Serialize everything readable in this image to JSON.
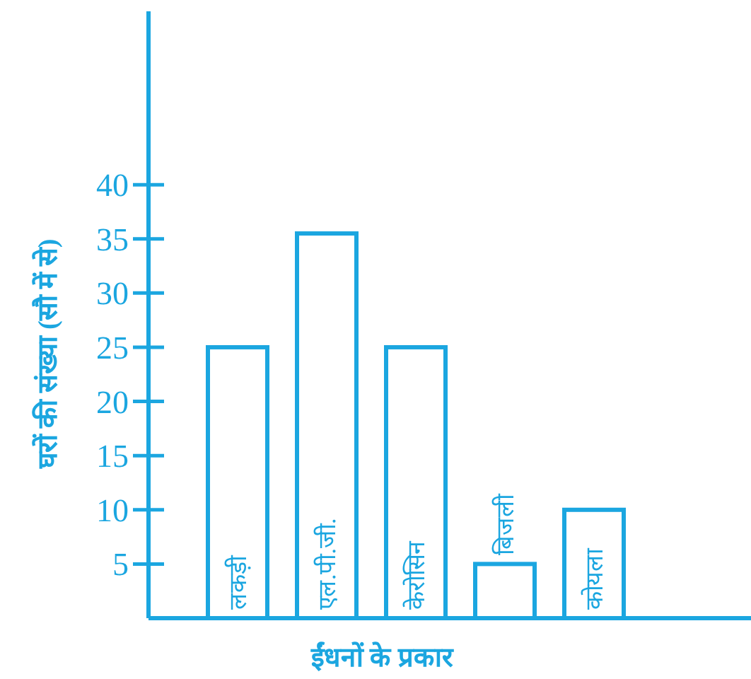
{
  "chart_data": {
    "type": "bar",
    "xlabel": "ईंधनों के प्रकार",
    "ylabel": "घरों की संख्या (सौ में से)",
    "categories": [
      "लकड़ी",
      "एल.पी.जी.",
      "केरोसिन",
      "बिजली",
      "कोयला"
    ],
    "values": [
      25,
      35.5,
      25,
      5,
      10
    ],
    "color": "#1ba6e0",
    "ylim": [
      0,
      56
    ],
    "yticks": [
      5,
      10,
      15,
      20,
      25,
      30,
      35,
      40
    ]
  }
}
